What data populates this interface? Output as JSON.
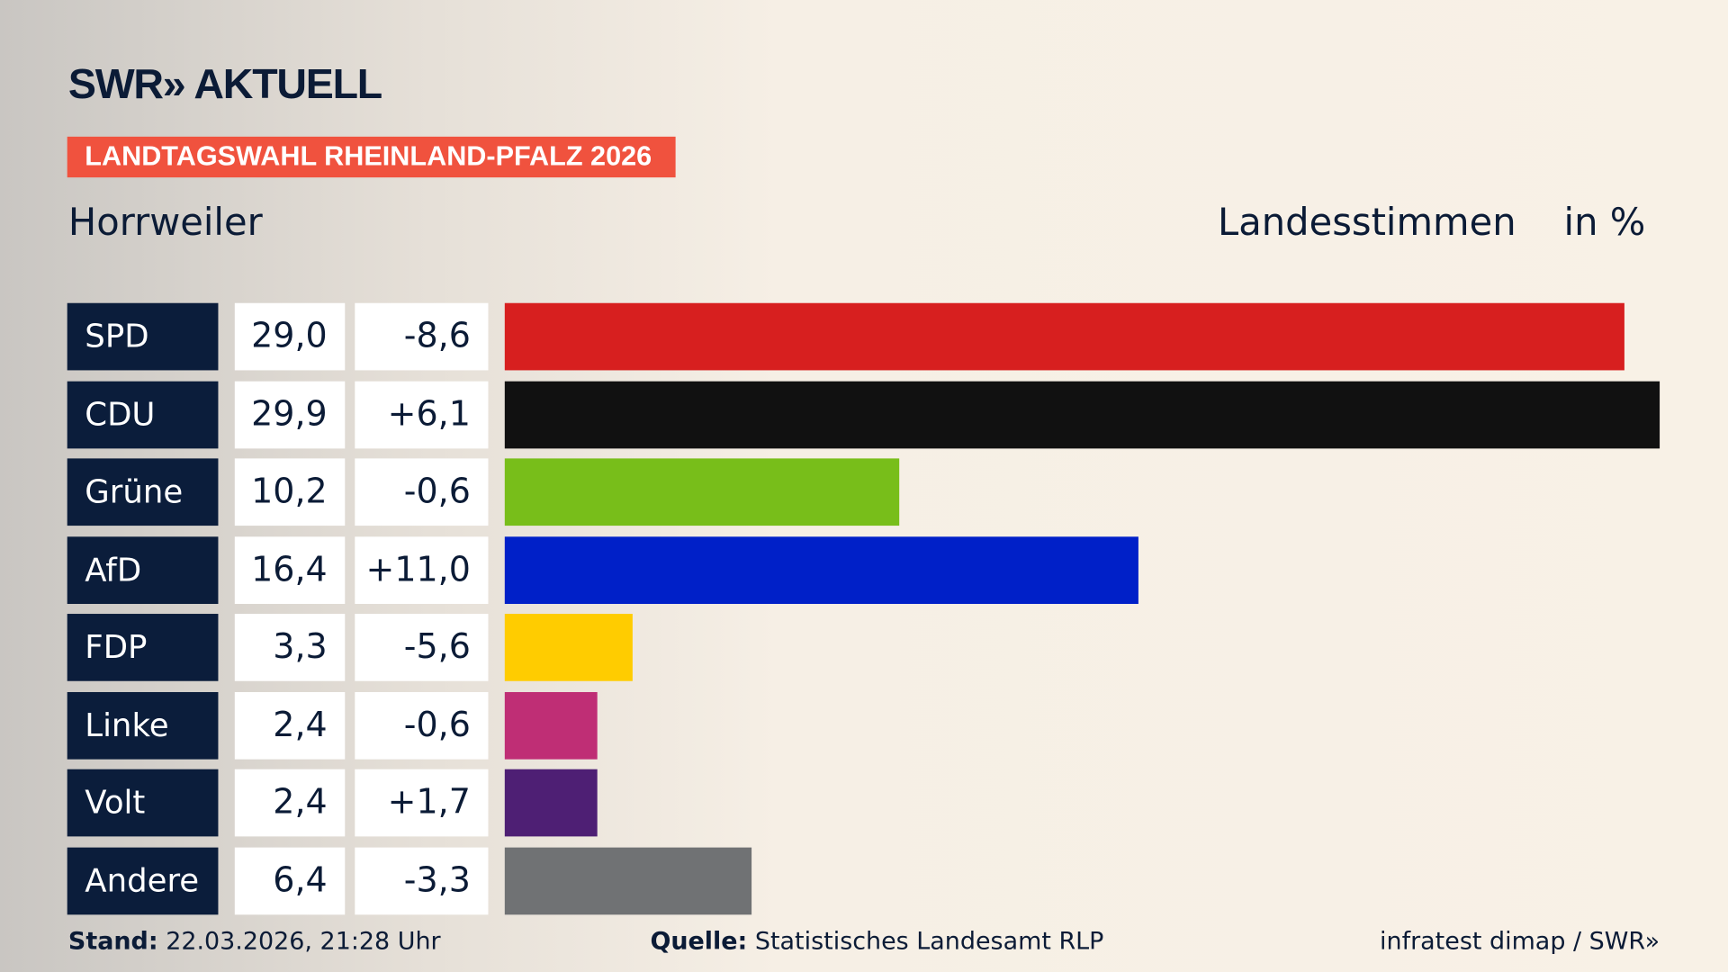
{
  "header": {
    "logo": "SWR» AKTUELL",
    "banner": "LANDTAGSWAHL RHEINLAND-PFALZ 2026",
    "place": "Horrweiler",
    "measure": "Landesstimmen",
    "unit": "in %"
  },
  "chart_data": {
    "type": "bar",
    "orientation": "horizontal",
    "categories": [
      "SPD",
      "CDU",
      "Grüne",
      "AfD",
      "FDP",
      "Linke",
      "Volt",
      "Andere"
    ],
    "values": [
      29.0,
      29.9,
      10.2,
      16.4,
      3.3,
      2.4,
      2.4,
      6.4
    ],
    "value_labels": [
      "29,0",
      "29,9",
      "10,2",
      "16,4",
      "3,3",
      "2,4",
      "2,4",
      "6,4"
    ],
    "diff_labels": [
      "-8,6",
      "+6,1",
      "-0,6",
      "+11,0",
      "-5,6",
      "-0,6",
      "+1,7",
      "-3,3"
    ],
    "colors": [
      "#d71f1f",
      "#111111",
      "#78be1a",
      "#0020c8",
      "#ffcc00",
      "#bf2e75",
      "#4e1f74",
      "#707274"
    ]
  },
  "footer": {
    "stand_label": "Stand:",
    "stand": "22.03.2026, 21:28 Uhr",
    "source_label": "Quelle:",
    "source": "Statistisches Landesamt RLP",
    "credit": "infratest dimap / SWR»"
  }
}
